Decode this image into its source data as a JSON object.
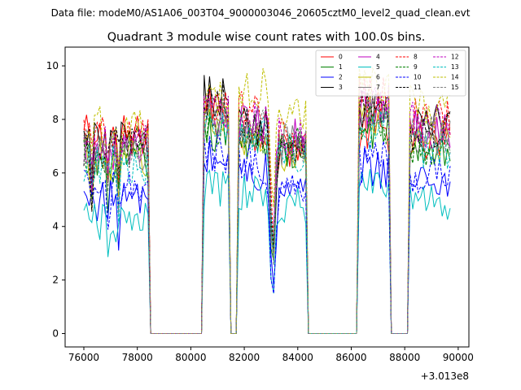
{
  "figure_header": "Data file: modeM0/AS1A06_003T04_9000003046_20605cztM0_level2_quad_clean.evt",
  "chart_data": {
    "type": "line",
    "title": "Quadrant 3 module wise count rates with 100.0s bins.",
    "xlabel": "",
    "ylabel": "",
    "x_offset_label": "+3.013e8",
    "xlim": [
      75300,
      90400
    ],
    "ylim": [
      -0.5,
      10.7
    ],
    "grid": false,
    "legend_position": "top-right",
    "x_ticks": [
      76000,
      78000,
      80000,
      82000,
      84000,
      86000,
      88000,
      90000
    ],
    "x_tick_labels": [
      "76000",
      "78000",
      "80000",
      "82000",
      "84000",
      "86000",
      "88000",
      "90000"
    ],
    "y_ticks": [
      0,
      2,
      4,
      6,
      8,
      10
    ],
    "y_tick_labels": [
      "0",
      "2",
      "4",
      "6",
      "8",
      "10"
    ],
    "segments": [
      {
        "start": 76000,
        "end": 78400
      },
      {
        "start": 80500,
        "end": 81400
      },
      {
        "start": 81800,
        "end": 83000
      },
      {
        "start": 83100,
        "end": 84300
      },
      {
        "start": 86300,
        "end": 87400
      },
      {
        "start": 88200,
        "end": 89700
      }
    ],
    "zero_ranges": [
      {
        "start": 78500,
        "end": 80400
      },
      {
        "start": 81400,
        "end": 81800
      },
      {
        "start": 84400,
        "end": 86200
      },
      {
        "start": 87500,
        "end": 88100
      }
    ],
    "series": [
      {
        "name": "0",
        "color": "#ff0000",
        "dash": false,
        "segment_levels": [
          7.4,
          8.5,
          7.6,
          7.0,
          7.5,
          7.0
        ]
      },
      {
        "name": "1",
        "color": "#008000",
        "dash": false,
        "segment_levels": [
          6.4,
          7.4,
          7.3,
          6.7,
          7.7,
          6.9
        ]
      },
      {
        "name": "2",
        "color": "#0000ff",
        "dash": false,
        "segment_levels": [
          5.0,
          6.5,
          6.0,
          5.1,
          6.2,
          5.7
        ]
      },
      {
        "name": "3",
        "color": "#000000",
        "dash": false,
        "segment_levels": [
          7.2,
          8.9,
          7.8,
          7.2,
          8.4,
          7.8
        ]
      },
      {
        "name": "4",
        "color": "#bf00bf",
        "dash": false,
        "segment_levels": [
          6.9,
          8.0,
          7.8,
          7.3,
          8.3,
          7.7
        ]
      },
      {
        "name": "5",
        "color": "#00bfbf",
        "dash": false,
        "segment_levels": [
          4.1,
          5.4,
          5.2,
          4.7,
          5.6,
          5.0
        ]
      },
      {
        "name": "6",
        "color": "#bfbf00",
        "dash": false,
        "segment_levels": [
          6.5,
          7.7,
          7.4,
          6.8,
          7.9,
          7.2
        ]
      },
      {
        "name": "7",
        "color": "#808080",
        "dash": false,
        "segment_levels": [
          6.8,
          7.9,
          7.6,
          7.0,
          8.1,
          7.4
        ]
      },
      {
        "name": "8",
        "color": "#ff0000",
        "dash": true,
        "segment_levels": [
          7.3,
          8.4,
          8.6,
          7.3,
          8.9,
          8.0
        ]
      },
      {
        "name": "9",
        "color": "#008000",
        "dash": true,
        "segment_levels": [
          6.5,
          7.6,
          7.4,
          6.9,
          7.8,
          7.0
        ]
      },
      {
        "name": "10",
        "color": "#0000ff",
        "dash": true,
        "segment_levels": [
          5.3,
          6.7,
          6.3,
          5.3,
          6.4,
          6.0
        ]
      },
      {
        "name": "11",
        "color": "#000000",
        "dash": true,
        "segment_levels": [
          7.0,
          8.6,
          7.7,
          7.1,
          8.5,
          7.6
        ]
      },
      {
        "name": "12",
        "color": "#bf00bf",
        "dash": true,
        "segment_levels": [
          7.1,
          8.1,
          7.9,
          7.4,
          8.6,
          7.9
        ]
      },
      {
        "name": "13",
        "color": "#00bfbf",
        "dash": true,
        "segment_levels": [
          6.3,
          7.5,
          7.3,
          6.8,
          7.6,
          6.8
        ]
      },
      {
        "name": "14",
        "color": "#bfbf00",
        "dash": true,
        "segment_levels": [
          7.8,
          8.6,
          9.2,
          8.3,
          9.3,
          8.5
        ]
      },
      {
        "name": "15",
        "color": "#808080",
        "dash": true,
        "segment_levels": [
          6.9,
          8.0,
          7.7,
          7.1,
          8.2,
          7.5
        ]
      }
    ]
  }
}
